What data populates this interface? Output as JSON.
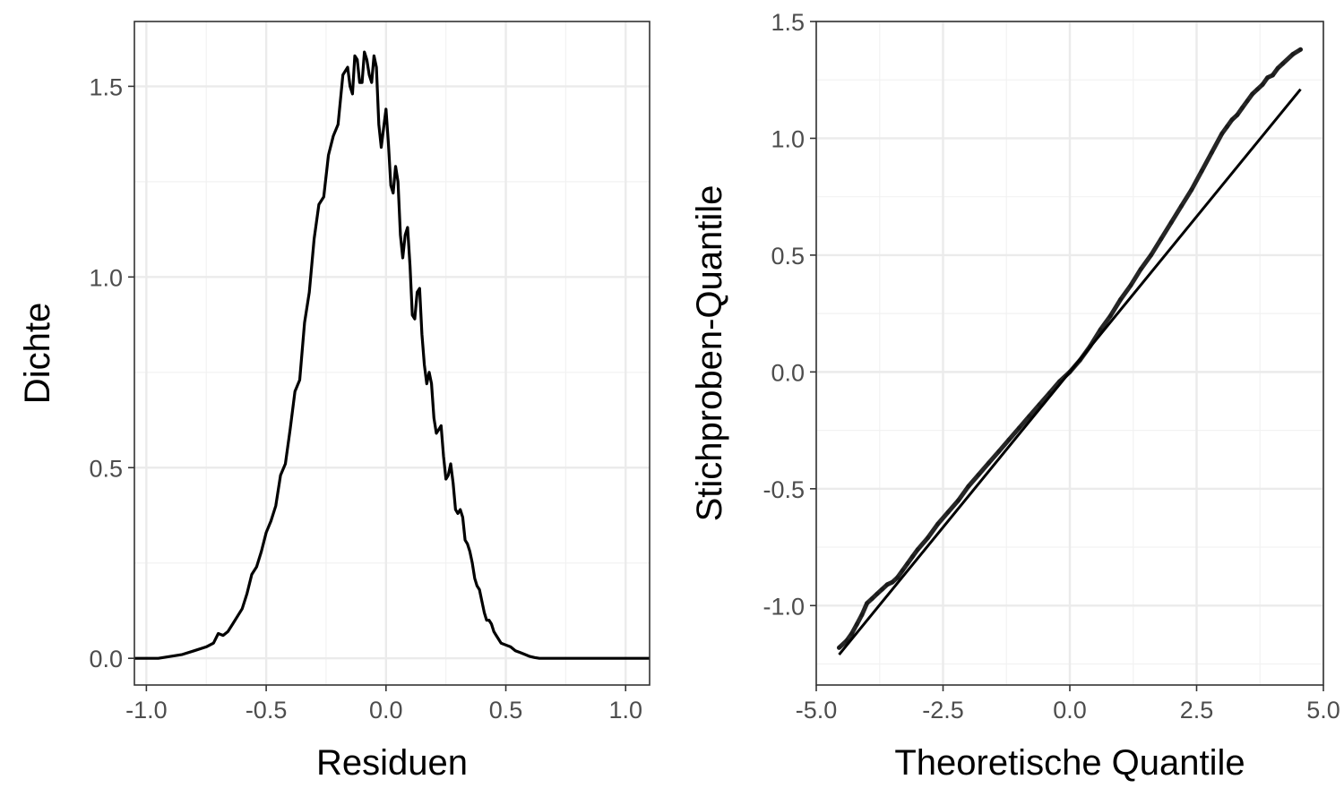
{
  "chart_data": [
    {
      "type": "line",
      "xlabel": "Residuen",
      "ylabel": "Dichte",
      "xlim": [
        -1.05,
        1.1
      ],
      "ylim": [
        -0.07,
        1.67
      ],
      "xticks": [
        -1.0,
        -0.5,
        0.0,
        0.5,
        1.0
      ],
      "xtick_labels": [
        "-1.0",
        "-0.5",
        "0.0",
        "0.5",
        "1.0"
      ],
      "yticks": [
        0.0,
        0.5,
        1.0,
        1.5
      ],
      "ytick_labels": [
        "0.0",
        "0.5",
        "1.0",
        "1.5"
      ],
      "grid": true,
      "line_color": "#000000",
      "series": [
        {
          "x": [
            -1.1,
            -0.95,
            -0.9,
            -0.85,
            -0.8,
            -0.75,
            -0.72,
            -0.7,
            -0.68,
            -0.66,
            -0.64,
            -0.6,
            -0.58,
            -0.56,
            -0.54,
            -0.52,
            -0.5,
            -0.48,
            -0.46,
            -0.44,
            -0.42,
            -0.4,
            -0.38,
            -0.36,
            -0.34,
            -0.32,
            -0.3,
            -0.28,
            -0.26,
            -0.24,
            -0.22,
            -0.2,
            -0.18,
            -0.16,
            -0.15,
            -0.14,
            -0.13,
            -0.12,
            -0.11,
            -0.1,
            -0.09,
            -0.08,
            -0.07,
            -0.06,
            -0.05,
            -0.04,
            -0.03,
            -0.02,
            -0.01,
            0.0,
            0.01,
            0.02,
            0.03,
            0.04,
            0.05,
            0.06,
            0.07,
            0.08,
            0.09,
            0.1,
            0.11,
            0.12,
            0.13,
            0.14,
            0.15,
            0.16,
            0.17,
            0.18,
            0.19,
            0.2,
            0.21,
            0.22,
            0.23,
            0.24,
            0.25,
            0.26,
            0.27,
            0.28,
            0.29,
            0.3,
            0.31,
            0.32,
            0.33,
            0.34,
            0.35,
            0.36,
            0.37,
            0.38,
            0.39,
            0.4,
            0.41,
            0.42,
            0.43,
            0.44,
            0.45,
            0.46,
            0.47,
            0.48,
            0.5,
            0.52,
            0.54,
            0.56,
            0.58,
            0.6,
            0.62,
            0.64,
            0.66,
            0.68,
            0.7,
            0.75,
            0.8,
            0.85,
            0.9,
            1.0,
            1.1
          ],
          "y": [
            0.0,
            0.0,
            0.005,
            0.01,
            0.02,
            0.03,
            0.04,
            0.065,
            0.06,
            0.07,
            0.09,
            0.13,
            0.17,
            0.22,
            0.24,
            0.28,
            0.33,
            0.36,
            0.4,
            0.48,
            0.51,
            0.6,
            0.7,
            0.73,
            0.88,
            0.96,
            1.1,
            1.19,
            1.21,
            1.32,
            1.37,
            1.4,
            1.53,
            1.55,
            1.5,
            1.48,
            1.58,
            1.57,
            1.51,
            1.51,
            1.59,
            1.57,
            1.53,
            1.51,
            1.58,
            1.55,
            1.4,
            1.34,
            1.39,
            1.44,
            1.35,
            1.24,
            1.22,
            1.29,
            1.25,
            1.11,
            1.05,
            1.11,
            1.13,
            1.03,
            0.9,
            0.89,
            0.96,
            0.97,
            0.85,
            0.77,
            0.72,
            0.75,
            0.72,
            0.63,
            0.59,
            0.6,
            0.61,
            0.53,
            0.47,
            0.48,
            0.51,
            0.46,
            0.39,
            0.38,
            0.39,
            0.37,
            0.31,
            0.3,
            0.28,
            0.25,
            0.21,
            0.19,
            0.18,
            0.15,
            0.12,
            0.1,
            0.1,
            0.09,
            0.07,
            0.06,
            0.05,
            0.04,
            0.035,
            0.03,
            0.02,
            0.015,
            0.01,
            0.005,
            0.002,
            0.0,
            0.0,
            0.0,
            0.0,
            0.0,
            0.0,
            0.0,
            0.0,
            0.0,
            0.0
          ]
        }
      ]
    },
    {
      "type": "scatter",
      "xlabel": "Theoretische Quantile",
      "ylabel": "Stichproben-Quantile",
      "xlim": [
        -5.0,
        5.0
      ],
      "ylim": [
        -1.34,
        1.5
      ],
      "xticks": [
        -5.0,
        -2.5,
        0.0,
        2.5,
        5.0
      ],
      "xtick_labels": [
        "-5.0",
        "-2.5",
        "0.0",
        "2.5",
        "5.0"
      ],
      "yticks": [
        -1.0,
        -0.5,
        0.0,
        0.5,
        1.0,
        1.5
      ],
      "ytick_labels": [
        "-1.0",
        "-0.5",
        "0.0",
        "0.5",
        "1.0",
        "1.5"
      ],
      "grid": true,
      "point_color": "#000000",
      "reference_line": {
        "x": [
          -4.55,
          4.55
        ],
        "y": [
          -1.21,
          1.21
        ],
        "color": "#000000"
      },
      "series": [
        {
          "x": [
            -4.55,
            -4.4,
            -4.3,
            -4.2,
            -4.1,
            -4.0,
            -3.9,
            -3.8,
            -3.7,
            -3.6,
            -3.5,
            -3.4,
            -3.3,
            -3.2,
            -3.1,
            -3.0,
            -2.8,
            -2.6,
            -2.4,
            -2.2,
            -2.0,
            -1.8,
            -1.6,
            -1.4,
            -1.2,
            -1.0,
            -0.8,
            -0.6,
            -0.4,
            -0.2,
            0.0,
            0.2,
            0.4,
            0.6,
            0.8,
            1.0,
            1.2,
            1.4,
            1.6,
            1.8,
            2.0,
            2.2,
            2.4,
            2.6,
            2.8,
            3.0,
            3.1,
            3.2,
            3.3,
            3.4,
            3.5,
            3.6,
            3.7,
            3.8,
            3.9,
            4.0,
            4.1,
            4.2,
            4.4,
            4.55
          ],
          "y": [
            -1.18,
            -1.15,
            -1.12,
            -1.08,
            -1.04,
            -0.99,
            -0.97,
            -0.95,
            -0.93,
            -0.91,
            -0.9,
            -0.88,
            -0.85,
            -0.82,
            -0.79,
            -0.76,
            -0.71,
            -0.65,
            -0.6,
            -0.55,
            -0.49,
            -0.44,
            -0.39,
            -0.34,
            -0.29,
            -0.24,
            -0.19,
            -0.14,
            -0.09,
            -0.04,
            0.0,
            0.05,
            0.11,
            0.18,
            0.24,
            0.31,
            0.37,
            0.44,
            0.5,
            0.57,
            0.64,
            0.71,
            0.78,
            0.86,
            0.94,
            1.02,
            1.05,
            1.08,
            1.1,
            1.13,
            1.16,
            1.19,
            1.21,
            1.23,
            1.26,
            1.27,
            1.3,
            1.32,
            1.36,
            1.38
          ]
        }
      ]
    }
  ]
}
